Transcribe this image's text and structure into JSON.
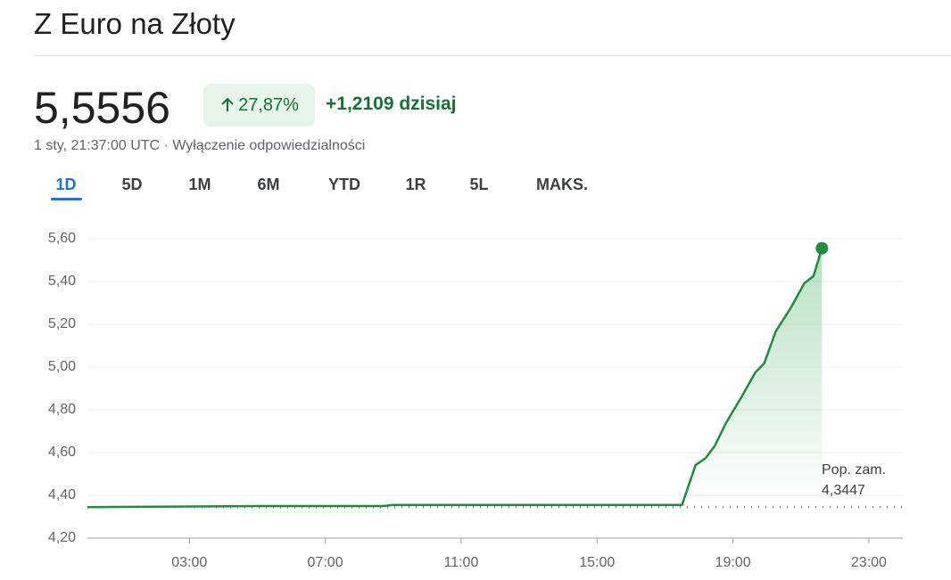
{
  "header": {
    "title": "Z Euro na Złoty",
    "price": "5,5556",
    "change_percent": "27,87%",
    "change_today": "+1,2109 dzisiaj",
    "timestamp": "1 sty, 21:37:00 UTC · Wyłączenie odpowiedzialności"
  },
  "tabs": [
    "1D",
    "5D",
    "1M",
    "6M",
    "YTD",
    "1R",
    "5L",
    "MAKS."
  ],
  "chart_data": {
    "type": "line",
    "x": [
      0,
      5,
      8.7,
      9,
      17.5,
      17.9,
      18.2,
      18.47,
      18.79,
      19.26,
      19.66,
      19.92,
      20.26,
      20.71,
      21.1,
      21.37,
      21.62
    ],
    "series": [
      {
        "color": "#1e8e3e",
        "values": [
          4.345,
          4.35,
          4.35,
          4.355,
          4.355,
          4.542,
          4.575,
          4.633,
          4.737,
          4.8625,
          4.975,
          5.017,
          5.167,
          5.279,
          5.392,
          5.425,
          5.5556
        ]
      }
    ],
    "xlim": [
      0,
      24
    ],
    "xticks": [
      {
        "value": 3,
        "label": "03:00"
      },
      {
        "value": 7,
        "label": "07:00"
      },
      {
        "value": 11,
        "label": "11:00"
      },
      {
        "value": 15,
        "label": "15:00"
      },
      {
        "value": 19,
        "label": "19:00"
      },
      {
        "value": 23,
        "label": "23:00"
      }
    ],
    "ylim": [
      4.2,
      5.7
    ],
    "yticks": [
      {
        "value": 4.2,
        "label": "4,20"
      },
      {
        "value": 4.4,
        "label": "4,40"
      },
      {
        "value": 4.6,
        "label": "4,60"
      },
      {
        "value": 4.8,
        "label": "4,80"
      },
      {
        "value": 5.0,
        "label": "5,00"
      },
      {
        "value": 5.2,
        "label": "5,20"
      },
      {
        "value": 5.4,
        "label": "5,40"
      },
      {
        "value": 5.6,
        "label": "5,60"
      }
    ],
    "grid": true,
    "previous_close_title": "Pop. zam.",
    "previous_close": {
      "value": 4.3447,
      "label": "4,3447"
    }
  }
}
